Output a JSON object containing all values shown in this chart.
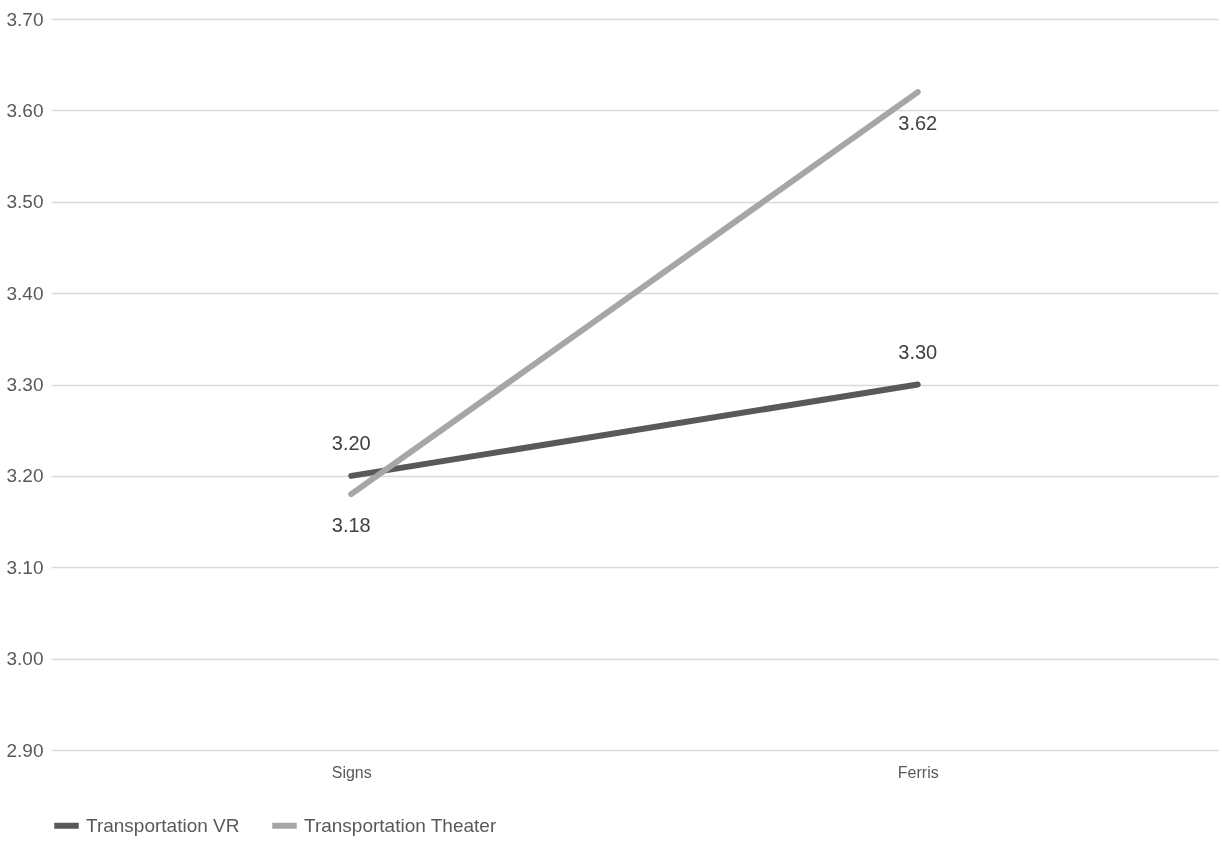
{
  "chart_data": {
    "type": "line",
    "categories": [
      "Signs",
      "Ferris"
    ],
    "series": [
      {
        "name": "Transportation VR",
        "color": "#595959",
        "values": [
          3.2,
          3.3
        ],
        "value_labels": [
          "3.20",
          "3.30"
        ]
      },
      {
        "name": "Transportation Theater",
        "color": "#a6a6a6",
        "values": [
          3.18,
          3.62
        ],
        "value_labels": [
          "3.18",
          "3.62"
        ]
      }
    ],
    "ylim": [
      2.9,
      3.7
    ],
    "yticks": [
      {
        "value": 2.9,
        "label": "2.90"
      },
      {
        "value": 3.0,
        "label": "3.00"
      },
      {
        "value": 3.1,
        "label": "3.10"
      },
      {
        "value": 3.2,
        "label": "3.20"
      },
      {
        "value": 3.3,
        "label": "3.30"
      },
      {
        "value": 3.4,
        "label": "3.40"
      },
      {
        "value": 3.5,
        "label": "3.50"
      },
      {
        "value": 3.6,
        "label": "3.60"
      },
      {
        "value": 3.7,
        "label": "3.70"
      }
    ],
    "grid": "y",
    "legend": "bottom",
    "marker": "none",
    "line_style": "solid"
  }
}
